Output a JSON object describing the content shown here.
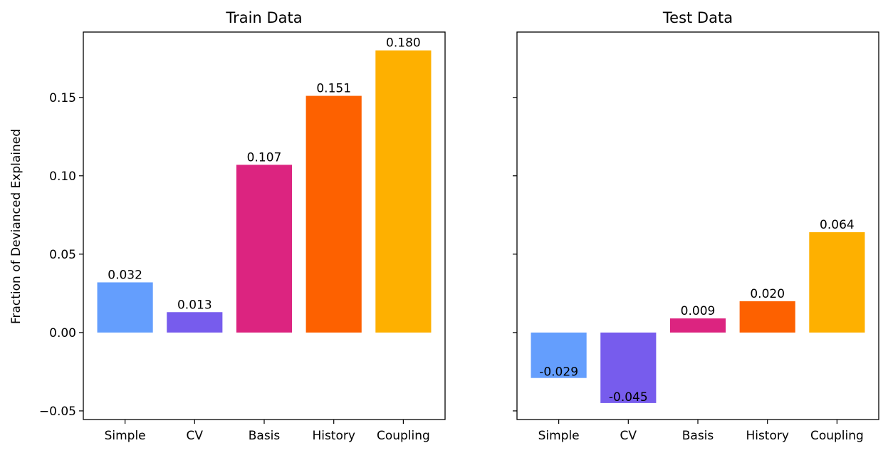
{
  "figure": {
    "ylabel": "Fraction of Devianced Explained"
  },
  "chart_data": [
    {
      "type": "bar",
      "title": "Train Data",
      "xlabel": "",
      "ylabel": "Fraction of Devianced Explained",
      "categories": [
        "Simple",
        "CV",
        "Basis",
        "History",
        "Coupling"
      ],
      "values": [
        0.032,
        0.013,
        0.107,
        0.151,
        0.18
      ],
      "value_labels": [
        "0.032",
        "0.013",
        "0.107",
        "0.151",
        "0.180"
      ],
      "colors": [
        "#649efd",
        "#775ced",
        "#dc2480",
        "#fd6100",
        "#feb000"
      ],
      "ylim": [
        -0.0555,
        0.1917
      ],
      "yticks": [
        -0.05,
        0.0,
        0.05,
        0.1,
        0.15
      ],
      "ytick_labels": [
        "−0.05",
        "0.00",
        "0.05",
        "0.10",
        "0.15"
      ],
      "show_ytick_labels": true,
      "grid": false
    },
    {
      "type": "bar",
      "title": "Test Data",
      "xlabel": "",
      "ylabel": "",
      "categories": [
        "Simple",
        "CV",
        "Basis",
        "History",
        "Coupling"
      ],
      "values": [
        -0.029,
        -0.045,
        0.009,
        0.02,
        0.064
      ],
      "value_labels": [
        "-0.029",
        "-0.045",
        "0.009",
        "0.020",
        "0.064"
      ],
      "colors": [
        "#649efd",
        "#775ced",
        "#dc2480",
        "#fd6100",
        "#feb000"
      ],
      "ylim": [
        -0.0555,
        0.1917
      ],
      "yticks": [
        -0.05,
        0.0,
        0.05,
        0.1,
        0.15
      ],
      "ytick_labels": [
        "",
        "",
        "",
        "",
        ""
      ],
      "show_ytick_labels": false,
      "grid": false
    }
  ]
}
